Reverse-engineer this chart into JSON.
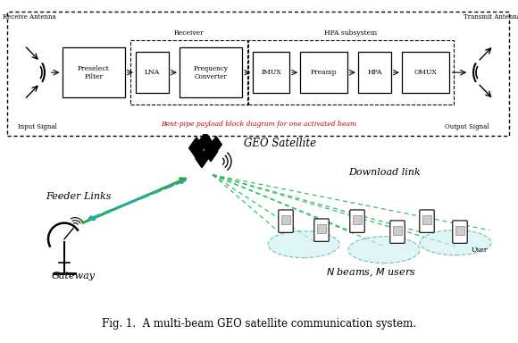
{
  "fig_caption": "Fig. 1.  A multi-beam GEO satellite communication system.",
  "bent_pipe_label": "Bent-pipe payload block diagram for one activated beam",
  "receiver_label": "Receiver",
  "hpa_label": "HPA subsystem",
  "receive_antenna_label": "Receive Antenna",
  "transmit_antenna_label": "Transmit Antenna",
  "input_signal_label": "Input Signal",
  "output_signal_label": "Output Signal",
  "geo_satellite_label": "GEO Satellite",
  "feeder_links_label": "Feeder Links",
  "download_link_label": "Download link",
  "gateway_label": "Gateway",
  "user_label": "User",
  "bg_color": "#ffffff",
  "block_color": "#ffffff",
  "block_edge": "#000000",
  "bent_pipe_color": "#cc0000",
  "feeder_green": "#22aa22",
  "feeder_teal": "#22aaaa",
  "download_green": "#22bb55",
  "beam_fill": "#d0f0f0",
  "beam_edge": "#44aaaa"
}
